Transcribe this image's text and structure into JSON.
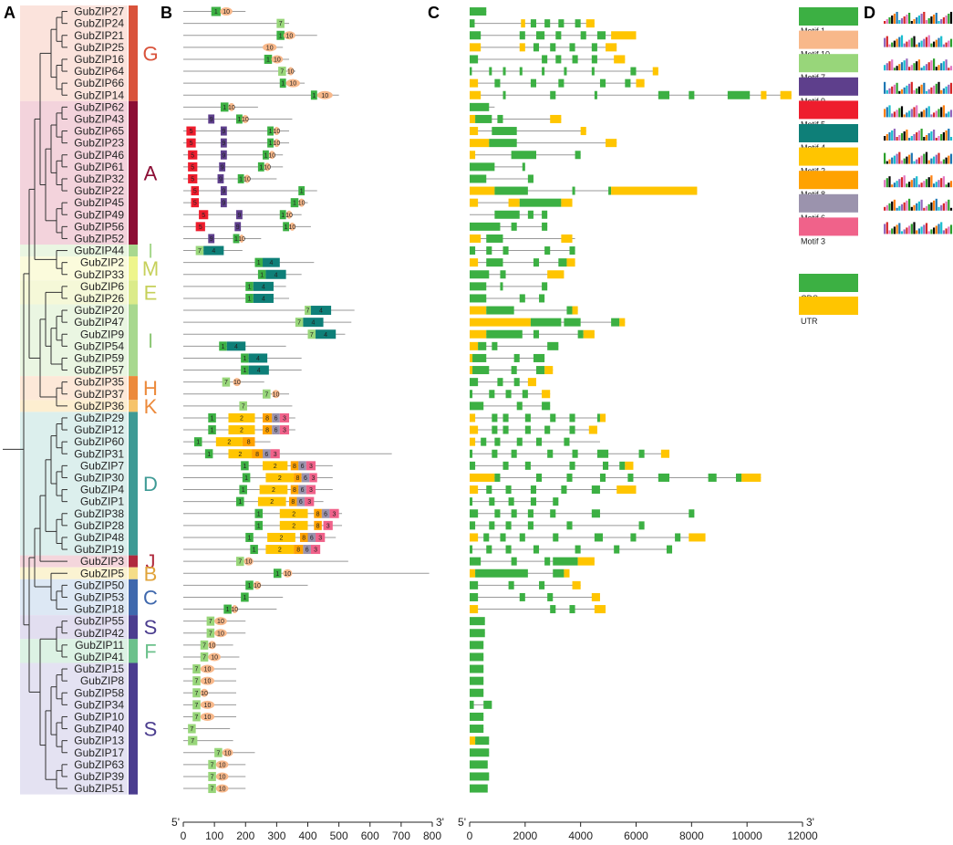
{
  "panels": {
    "a": "A",
    "b": "B",
    "c": "C",
    "d": "D"
  },
  "genes": [
    "GubZIP27",
    "GubZIP24",
    "GubZIP21",
    "GubZIP25",
    "GubZIP16",
    "GubZIP64",
    "GubZIP66",
    "GubZIP14",
    "GubZIP62",
    "GubZIP43",
    "GubZIP65",
    "GubZIP23",
    "GubZIP46",
    "GubZIP61",
    "GubZIP32",
    "GubZIP22",
    "GubZIP45",
    "GubZIP49",
    "GubZIP56",
    "GubZIP52",
    "GubZIP44",
    "GubZIP2",
    "GubZIP33",
    "GubZIP6",
    "GubZIP26",
    "GubZIP20",
    "GubZIP47",
    "GubZIP9",
    "GubZIP54",
    "GubZIP59",
    "GubZIP57",
    "GubZIP35",
    "GubZIP37",
    "GubZIP36",
    "GubZIP29",
    "GubZIP12",
    "GubZIP60",
    "GubZIP31",
    "GubZIP7",
    "GubZIP30",
    "GubZIP4",
    "GubZIP1",
    "GubZIP38",
    "GubZIP28",
    "GubZIP48",
    "GubZIP19",
    "GubZIP3",
    "GubZIP5",
    "GubZIP50",
    "GubZIP53",
    "GubZIP18",
    "GubZIP55",
    "GubZIP42",
    "GubZIP11",
    "GubZIP41",
    "GubZIP15",
    "GubZIP8",
    "GubZIP58",
    "GubZIP34",
    "GubZIP10",
    "GubZIP40",
    "GubZIP13",
    "GubZIP17",
    "GubZIP63",
    "GubZIP39",
    "GubZIP51"
  ],
  "groups": [
    {
      "label": "G",
      "start": 0,
      "end": 7,
      "bg": "#fbe3dc",
      "bar": "#d9533b",
      "text": "#d9533b"
    },
    {
      "label": "A",
      "start": 8,
      "end": 19,
      "bg": "#f3d3dc",
      "bar": "#8c0e35",
      "text": "#8c0e35"
    },
    {
      "label": "I",
      "start": 20,
      "end": 20,
      "bg": "#eaf6e2",
      "bar": "#a8d88f",
      "text": "#a8d88f"
    },
    {
      "label": "M",
      "start": 21,
      "end": 22,
      "bg": "#fbfbdc",
      "bar": "#eef58c",
      "text": "#c6d05a"
    },
    {
      "label": "E",
      "start": 23,
      "end": 24,
      "bg": "#f5f8d8",
      "bar": "#dbeb8a",
      "text": "#c6d05a"
    },
    {
      "label": "I",
      "start": 25,
      "end": 30,
      "bg": "#eaf6e2",
      "bar": "#a8d88f",
      "text": "#8fc878"
    },
    {
      "label": "H",
      "start": 31,
      "end": 32,
      "bg": "#fde8d8",
      "bar": "#ec8a3c",
      "text": "#ec8a3c"
    },
    {
      "label": "K",
      "start": 33,
      "end": 33,
      "bg": "#fdeed0",
      "bar": "#f6c36a",
      "text": "#ec8a3c"
    },
    {
      "label": "D",
      "start": 34,
      "end": 45,
      "bg": "#dcefed",
      "bar": "#3e9a95",
      "text": "#3e9a95"
    },
    {
      "label": "J",
      "start": 46,
      "end": 46,
      "bg": "#f4d6dc",
      "bar": "#b02a3e",
      "text": "#b02a3e"
    },
    {
      "label": "B",
      "start": 47,
      "end": 47,
      "bg": "#fbf3d2",
      "bar": "#f5dd88",
      "text": "#e0a33a"
    },
    {
      "label": "C",
      "start": 48,
      "end": 50,
      "bg": "#dde8f4",
      "bar": "#3f68ad",
      "text": "#3f68ad"
    },
    {
      "label": "S",
      "start": 51,
      "end": 52,
      "bg": "#e2def0",
      "bar": "#4b3d8f",
      "text": "#4b3d8f"
    },
    {
      "label": "F",
      "start": 53,
      "end": 54,
      "bg": "#dcf2e4",
      "bar": "#6cc18c",
      "text": "#6cc18c"
    },
    {
      "label": "S",
      "start": 55,
      "end": 65,
      "bg": "#e4e2f2",
      "bar": "#4b3d8f",
      "text": "#4b3d8f"
    }
  ],
  "motif_legend": [
    {
      "label": "Motif 1",
      "color": "#3cb043"
    },
    {
      "label": "Motif 10",
      "color": "#f8b88a"
    },
    {
      "label": "Motif 7",
      "color": "#98d67a"
    },
    {
      "label": "Motif 9",
      "color": "#5e3f8c"
    },
    {
      "label": "Motif 5",
      "color": "#ee1d2d"
    },
    {
      "label": "Motif 4",
      "color": "#0e7f78"
    },
    {
      "label": "Motif 2",
      "color": "#ffc500"
    },
    {
      "label": "Motif 8",
      "color": "#ffa200"
    },
    {
      "label": "Motif 6",
      "color": "#9b93ad"
    },
    {
      "label": "Motif 3",
      "color": "#f0628a"
    }
  ],
  "structure_legend": [
    {
      "label": "CDS",
      "color": "#3cb043"
    },
    {
      "label": "UTR",
      "color": "#ffc500"
    }
  ],
  "axis_b": {
    "end5": "5'",
    "end3": "3'",
    "ticks": [
      "0",
      "100",
      "200",
      "300",
      "400",
      "500",
      "600",
      "700",
      "800"
    ]
  },
  "axis_c": {
    "end5": "5'",
    "end3": "3'",
    "ticks": [
      "0",
      "2000",
      "4000",
      "6000",
      "8000",
      "10000",
      "12000"
    ]
  }
}
